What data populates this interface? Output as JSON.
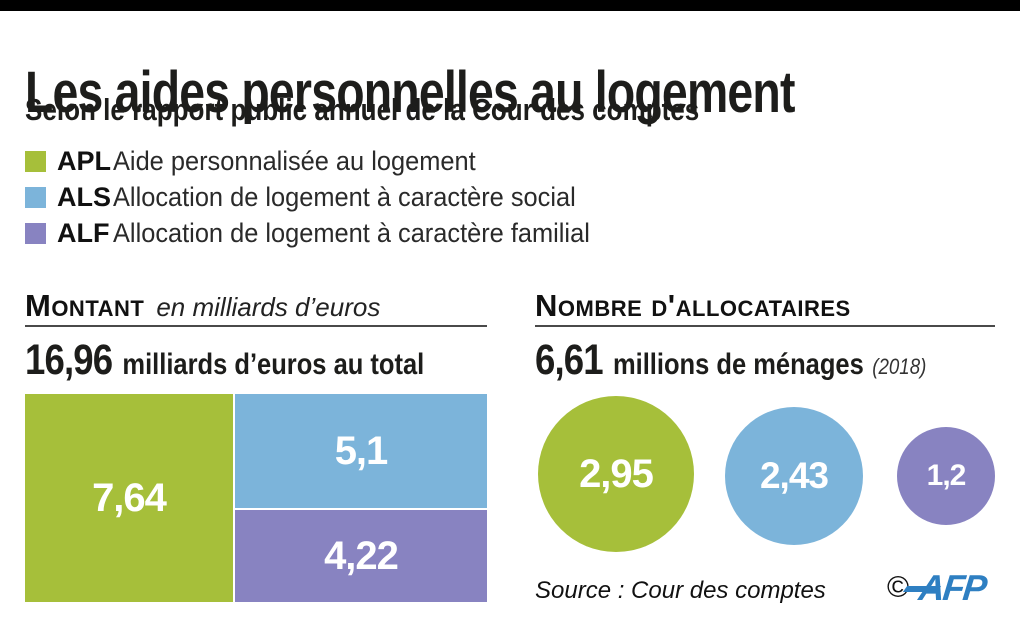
{
  "colors": {
    "top_bar": "#000000",
    "afp_blue": "#2e7fc2"
  },
  "header": {
    "title": "Les aides personnelles au logement",
    "subtitle": "Selon le rapport public annuel de la Cour des comptes"
  },
  "legend": {
    "items": [
      {
        "code": "APL",
        "label": "Aide personnalisée au logement",
        "color": "#a6bf3a"
      },
      {
        "code": "ALS",
        "label": "Allocation de logement à caractère social",
        "color": "#7cb4da"
      },
      {
        "code": "ALF",
        "label": "Allocation de logement à caractère familial",
        "color": "#8883c1"
      }
    ]
  },
  "montant": {
    "heading": "Montant",
    "heading_note": "en milliards d’euros",
    "total_value": "16,96",
    "total_label": "milliards d’euros au total",
    "cells": [
      {
        "code": "APL",
        "label": "7,64"
      },
      {
        "code": "ALS",
        "label": "5,1"
      },
      {
        "code": "ALF",
        "label": "4,22"
      }
    ]
  },
  "allocataires": {
    "heading": "Nombre d'allocataires",
    "total_value": "6,61",
    "total_label": "millions de ménages",
    "total_year": "(2018)",
    "bubbles": [
      {
        "code": "APL",
        "label": "2,95"
      },
      {
        "code": "ALS",
        "label": "2,43"
      },
      {
        "code": "ALF",
        "label": "1,2"
      }
    ]
  },
  "footer": {
    "source": "Source : Cour des comptes",
    "copyright": "©",
    "agency": "AFP"
  },
  "chart_data": [
    {
      "type": "treemap",
      "title": "Montant en milliards d’euros",
      "total": 16.96,
      "unit": "milliards d'euros",
      "series": [
        {
          "name": "APL",
          "value": 7.64,
          "color": "#a6bf3a"
        },
        {
          "name": "ALS",
          "value": 5.1,
          "color": "#7cb4da"
        },
        {
          "name": "ALF",
          "value": 4.22,
          "color": "#8883c1"
        }
      ]
    },
    {
      "type": "bubble",
      "title": "Nombre d'allocataires",
      "total": 6.61,
      "unit": "millions de ménages",
      "year": 2018,
      "series": [
        {
          "name": "APL",
          "value": 2.95,
          "color": "#a6bf3a"
        },
        {
          "name": "ALS",
          "value": 2.43,
          "color": "#7cb4da"
        },
        {
          "name": "ALF",
          "value": 1.2,
          "color": "#8883c1"
        }
      ]
    }
  ]
}
